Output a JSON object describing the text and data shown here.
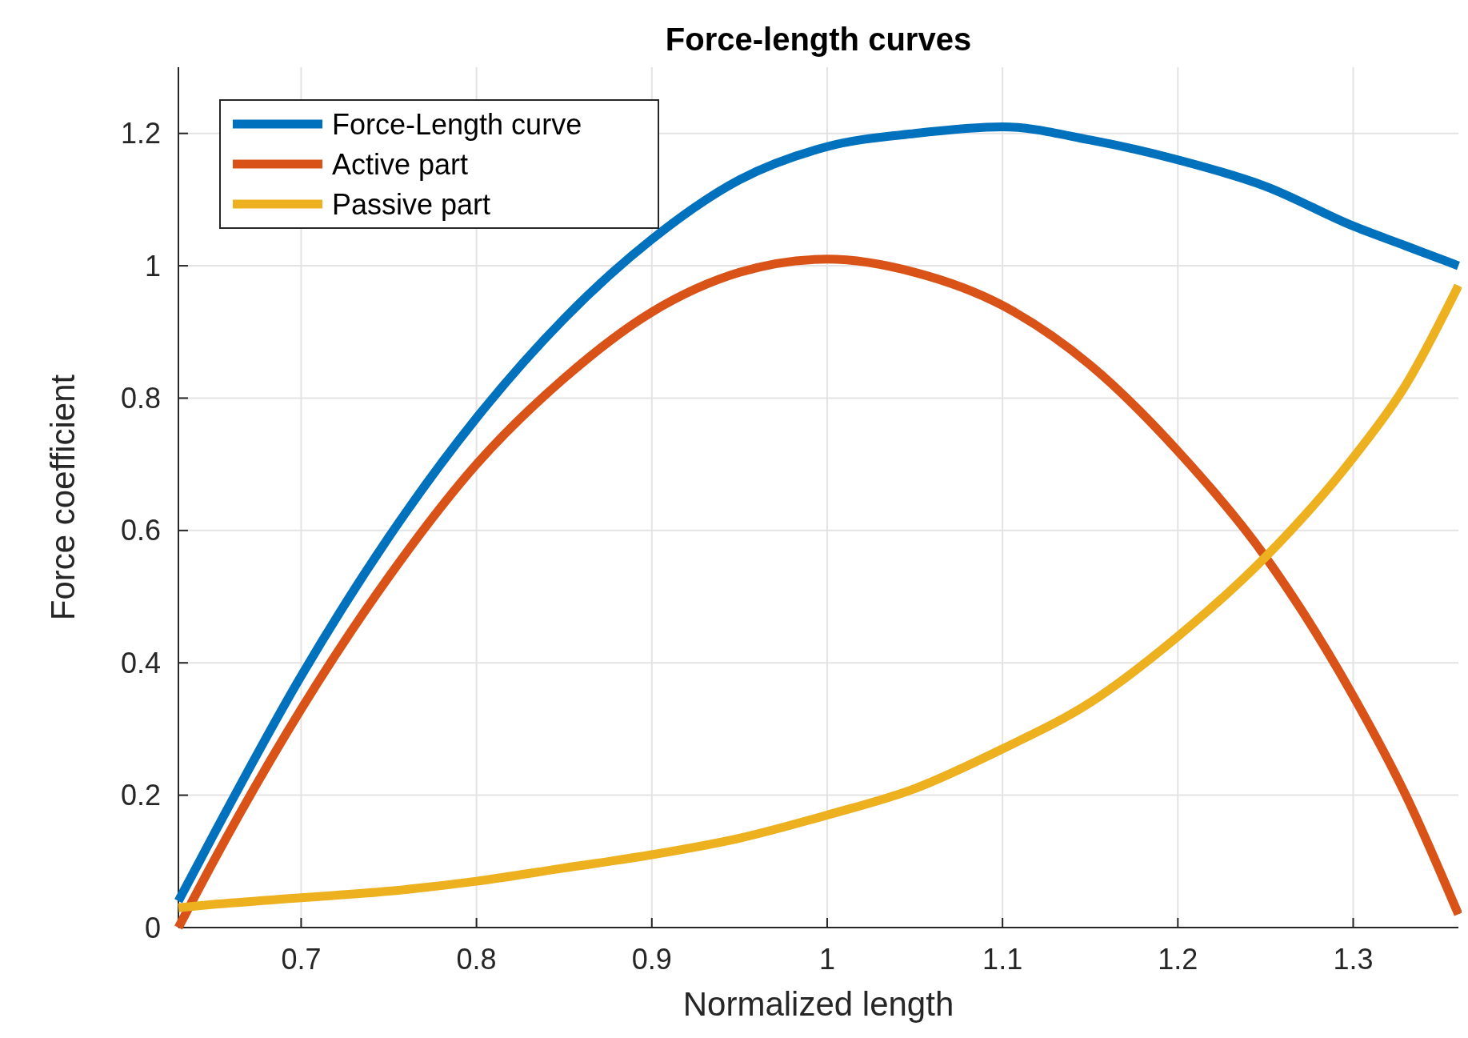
{
  "chart_data": {
    "type": "line",
    "title": "Force-length curves",
    "xlabel": "Normalized length",
    "ylabel": "Force coefficient",
    "x": [
      0.63,
      0.65,
      0.7,
      0.75,
      0.8,
      0.85,
      0.9,
      0.95,
      1.0,
      1.05,
      1.1,
      1.15,
      1.2,
      1.25,
      1.3,
      1.33,
      1.36
    ],
    "series": [
      {
        "name": "Force-Length curve",
        "color": "#0072bd",
        "values": [
          0.04,
          0.14,
          0.38,
          0.59,
          0.77,
          0.92,
          1.04,
          1.13,
          1.18,
          1.2,
          1.21,
          1.19,
          1.16,
          1.12,
          1.06,
          1.03,
          1.0
        ]
      },
      {
        "name": "Active part",
        "color": "#d95319",
        "values": [
          0,
          0.1,
          0.33,
          0.53,
          0.7,
          0.83,
          0.93,
          0.99,
          1.01,
          0.99,
          0.94,
          0.85,
          0.72,
          0.56,
          0.35,
          0.2,
          0.02
        ]
      },
      {
        "name": "Passive part",
        "color": "#edb120",
        "values": [
          0.03,
          0.035,
          0.045,
          0.055,
          0.07,
          0.09,
          0.11,
          0.135,
          0.17,
          0.21,
          0.27,
          0.34,
          0.44,
          0.56,
          0.71,
          0.82,
          0.97
        ]
      }
    ],
    "xlim": [
      0.63,
      1.36
    ],
    "xticks": [
      0.7,
      0.8,
      0.9,
      1,
      1.1,
      1.2,
      1.3
    ],
    "ylim": [
      0,
      1.3
    ],
    "yticks": [
      0,
      0.2,
      0.4,
      0.6,
      0.8,
      1,
      1.2
    ],
    "grid": true,
    "legend": "top left",
    "marker": "none",
    "line_style": "solid"
  }
}
